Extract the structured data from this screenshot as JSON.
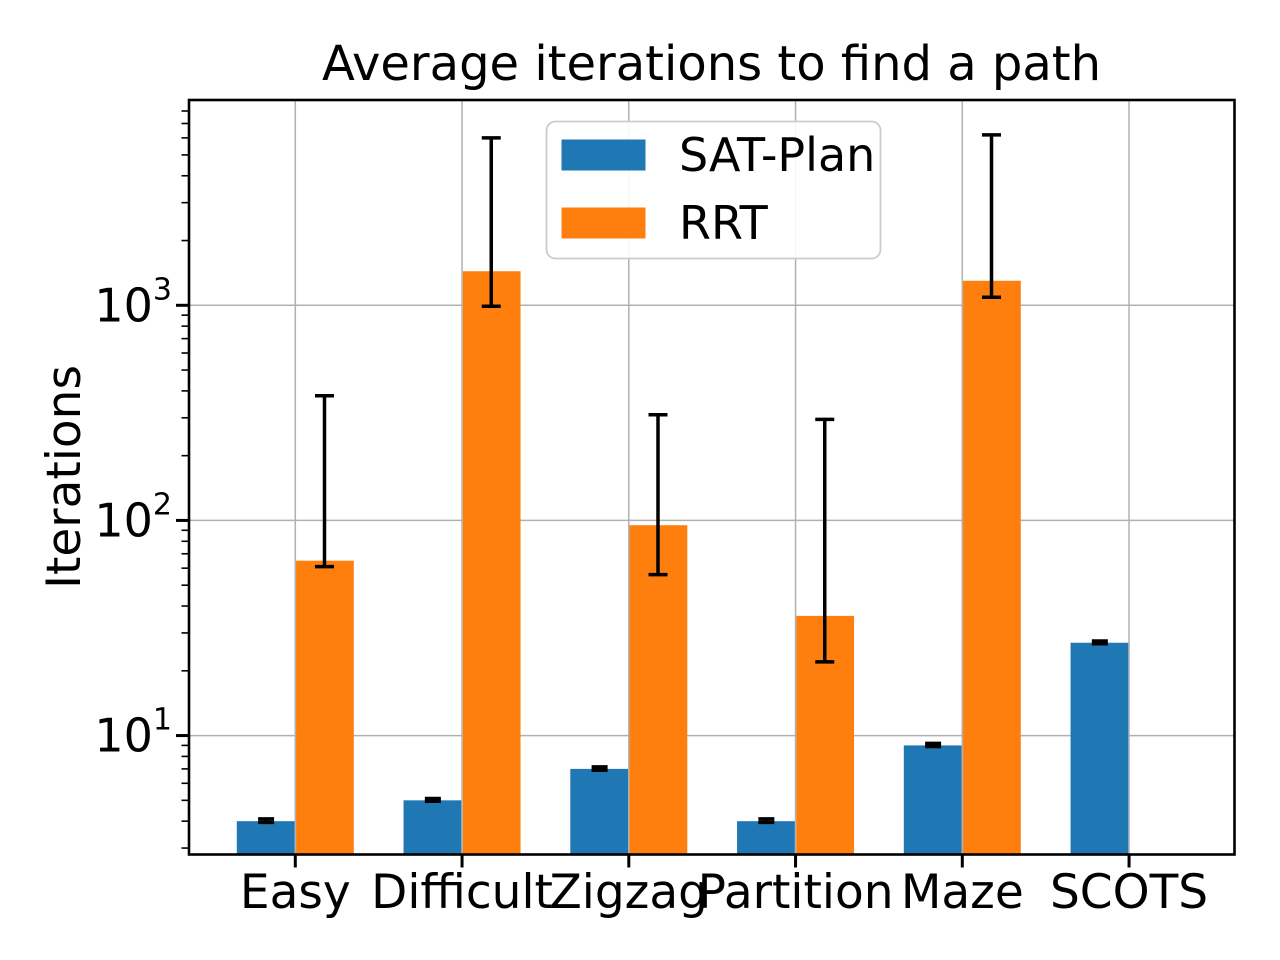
{
  "chart_data": {
    "type": "bar",
    "title": "Average iterations to find a path",
    "ylabel": "Iterations",
    "xlabel": "",
    "yscale": "log",
    "ylim": [
      2.8,
      9000
    ],
    "y_ticks": [
      10,
      100,
      1000
    ],
    "grid": true,
    "legend_position": "upper center",
    "error_bar_color": "#000000",
    "categories": [
      "Easy",
      "Difficult",
      "Zigzag",
      "Partition",
      "Maze",
      "SCOTS"
    ],
    "series": [
      {
        "name": "SAT-Plan",
        "color": "#1f77b4",
        "values": [
          4,
          5,
          7,
          4,
          9,
          27
        ],
        "err_low": [
          3.95,
          4.95,
          6.9,
          3.95,
          8.9,
          26.7
        ],
        "err_high": [
          4.1,
          5.1,
          7.15,
          4.1,
          9.2,
          27.5
        ]
      },
      {
        "name": "RRT",
        "color": "#ff7f0e",
        "values": [
          65,
          1440,
          95,
          36,
          1300,
          null
        ],
        "err_low": [
          61,
          990,
          56,
          22,
          1090,
          null
        ],
        "err_high": [
          380,
          6000,
          310,
          295,
          6200,
          null
        ]
      }
    ]
  }
}
